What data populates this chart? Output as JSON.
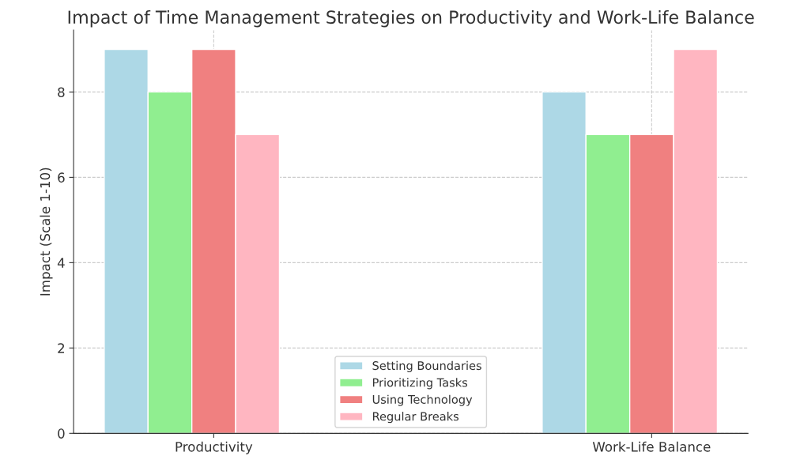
{
  "chart_data": {
    "type": "bar",
    "title": "Impact of Time Management Strategies on Productivity and Work-Life Balance",
    "ylabel": "Impact (Scale 1-10)",
    "categories": [
      "Productivity",
      "Work-Life Balance"
    ],
    "series": [
      {
        "name": "Setting Boundaries",
        "color": "#add8e6",
        "values": [
          9,
          8
        ]
      },
      {
        "name": "Prioritizing Tasks",
        "color": "#90ee90",
        "values": [
          8,
          7
        ]
      },
      {
        "name": "Using Technology",
        "color": "#f08080",
        "values": [
          9,
          7
        ]
      },
      {
        "name": "Regular Breaks",
        "color": "#ffb6c1",
        "values": [
          7,
          9
        ]
      }
    ],
    "ylim": [
      0,
      9.45
    ],
    "yticks": [
      0,
      2,
      4,
      6,
      8
    ],
    "grid": true,
    "legend": "bottom"
  }
}
